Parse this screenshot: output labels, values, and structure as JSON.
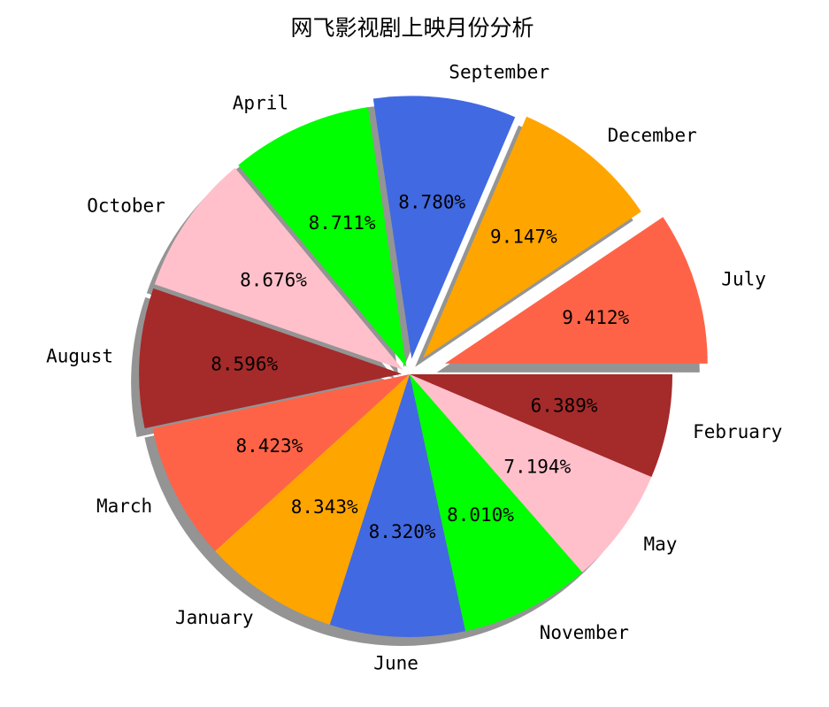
{
  "chart_data": {
    "type": "pie",
    "title": "网飞影视剧上映月份分析",
    "start_angle_deg": 0,
    "direction": "counterclockwise",
    "shadow": true,
    "slices": [
      {
        "label": "July",
        "value": 9.412,
        "pct_label": "9.412%",
        "color": "#ff6347",
        "explode": 0.14
      },
      {
        "label": "December",
        "value": 9.147,
        "pct_label": "9.147%",
        "color": "#ffa500",
        "explode": 0.08
      },
      {
        "label": "September",
        "value": 8.78,
        "pct_label": "8.780%",
        "color": "#4169e1",
        "explode": 0.06
      },
      {
        "label": "April",
        "value": 8.711,
        "pct_label": "8.711%",
        "color": "#00ff00",
        "explode": 0.03
      },
      {
        "label": "October",
        "value": 8.676,
        "pct_label": "8.676%",
        "color": "#ffc0cb",
        "explode": 0.03
      },
      {
        "label": "August",
        "value": 8.596,
        "pct_label": "8.596%",
        "color": "#a52a2a",
        "explode": 0.03
      },
      {
        "label": "March",
        "value": 8.423,
        "pct_label": "8.423%",
        "color": "#ff6347",
        "explode": 0
      },
      {
        "label": "January",
        "value": 8.343,
        "pct_label": "8.343%",
        "color": "#ffa500",
        "explode": 0
      },
      {
        "label": "June",
        "value": 8.32,
        "pct_label": "8.320%",
        "color": "#4169e1",
        "explode": 0
      },
      {
        "label": "November",
        "value": 8.01,
        "pct_label": "8.010%",
        "color": "#00ff00",
        "explode": 0
      },
      {
        "label": "May",
        "value": 7.194,
        "pct_label": "7.194%",
        "color": "#ffc0cb",
        "explode": 0
      },
      {
        "label": "February",
        "value": 6.389,
        "pct_label": "6.389%",
        "color": "#a52a2a",
        "explode": 0
      }
    ]
  }
}
